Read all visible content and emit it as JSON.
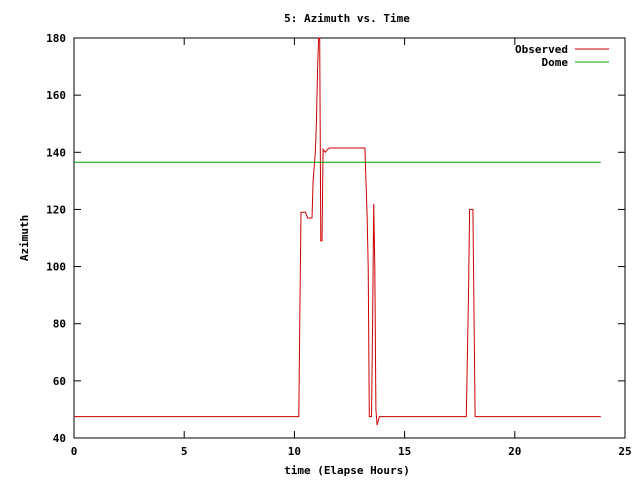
{
  "chart_data": {
    "type": "line",
    "title": "5: Azimuth vs. Time",
    "xlabel": "time (Elapse Hours)",
    "ylabel": "Azimuth",
    "xlim": [
      0,
      25
    ],
    "ylim": [
      40,
      180
    ],
    "xticks": [
      0,
      5,
      10,
      15,
      20,
      25
    ],
    "yticks": [
      40,
      60,
      80,
      100,
      120,
      140,
      160,
      180
    ],
    "grid": false,
    "legend_position": "top-right",
    "series": [
      {
        "name": "Observed",
        "color": "#cc0000",
        "points": [
          [
            0,
            47.5
          ],
          [
            10.2,
            47.5
          ],
          [
            10.25,
            85
          ],
          [
            10.3,
            119
          ],
          [
            10.5,
            119
          ],
          [
            10.6,
            117
          ],
          [
            10.8,
            117
          ],
          [
            10.85,
            130
          ],
          [
            10.95,
            140
          ],
          [
            11.0,
            150
          ],
          [
            11.05,
            168
          ],
          [
            11.1,
            180
          ],
          [
            11.15,
            180
          ],
          [
            11.2,
            109
          ],
          [
            11.25,
            109
          ],
          [
            11.3,
            141
          ],
          [
            11.4,
            140
          ],
          [
            11.5,
            141
          ],
          [
            11.6,
            141.5
          ],
          [
            13.2,
            141.5
          ],
          [
            13.3,
            118
          ],
          [
            13.35,
            100
          ],
          [
            13.4,
            47.5
          ],
          [
            13.5,
            47.5
          ],
          [
            13.55,
            80
          ],
          [
            13.6,
            122
          ],
          [
            13.65,
            100
          ],
          [
            13.7,
            50
          ],
          [
            13.75,
            44.5
          ],
          [
            13.85,
            47.5
          ],
          [
            17.8,
            47.5
          ],
          [
            17.9,
            90
          ],
          [
            17.95,
            120
          ],
          [
            18.1,
            120
          ],
          [
            18.2,
            47.5
          ],
          [
            23.9,
            47.5
          ]
        ]
      },
      {
        "name": "Dome",
        "color": "#00a000",
        "points": [
          [
            0,
            136.5
          ],
          [
            23.9,
            136.5
          ]
        ]
      }
    ]
  }
}
